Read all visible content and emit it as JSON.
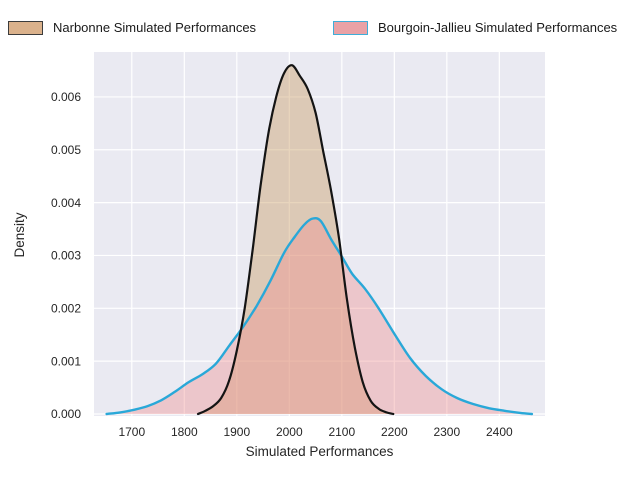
{
  "legend": {
    "items": [
      {
        "label": "Narbonne Simulated Performances",
        "swatch_fill": "#dbb28c",
        "swatch_border": "#3c3c3c"
      },
      {
        "label": "Bourgoin-Jallieu Simulated Performances",
        "swatch_fill": "#e9a2a6",
        "swatch_border": "#3fadd8"
      }
    ]
  },
  "chart_data": {
    "type": "area",
    "subtype": "kde-density",
    "title": "",
    "xlabel": "Simulated Performances",
    "ylabel": "Density",
    "xlim": [
      1628,
      2487
    ],
    "ylim": [
      0,
      0.00685
    ],
    "xticks": [
      "1700",
      "1800",
      "1900",
      "2000",
      "2100",
      "2200",
      "2300",
      "2400"
    ],
    "yticks": [
      "0.000",
      "0.001",
      "0.002",
      "0.003",
      "0.004",
      "0.005",
      "0.006"
    ],
    "grid": true,
    "legend_position": "top",
    "plot_background": "#eaeaf2",
    "grid_color": "#ffffff",
    "series": [
      {
        "name": "Narbonne Simulated Performances",
        "line_color": "#141414",
        "fill_color": "rgba(203,161,109,0.45)",
        "x": [
          1826,
          1840,
          1855,
          1870,
          1885,
          1900,
          1915,
          1930,
          1945,
          1960,
          1975,
          1990,
          2005,
          2020,
          2035,
          2050,
          2065,
          2080,
          2095,
          2110,
          2125,
          2140,
          2155,
          2170,
          2185,
          2198
        ],
        "y": [
          0,
          6e-05,
          0.00015,
          0.0003,
          0.00062,
          0.0012,
          0.002,
          0.0031,
          0.0043,
          0.0053,
          0.006,
          0.00645,
          0.0066,
          0.0064,
          0.00615,
          0.0057,
          0.00495,
          0.0042,
          0.0033,
          0.00215,
          0.00125,
          0.0006,
          0.00025,
          0.0001,
          3e-05,
          0
        ]
      },
      {
        "name": "Bourgoin-Jallieu Simulated Performances",
        "line_color": "#29a8d8",
        "fill_color": "rgba(239,144,145,0.40)",
        "x": [
          1652,
          1678,
          1704,
          1730,
          1756,
          1782,
          1808,
          1834,
          1860,
          1886,
          1912,
          1938,
          1964,
          1990,
          2010,
          2030,
          2045,
          2060,
          2080,
          2100,
          2120,
          2145,
          2170,
          2200,
          2230,
          2260,
          2290,
          2320,
          2350,
          2380,
          2410,
          2440,
          2462
        ],
        "y": [
          0,
          3e-05,
          8e-05,
          0.00015,
          0.00026,
          0.00042,
          0.0006,
          0.00075,
          0.00095,
          0.0013,
          0.00165,
          0.00205,
          0.00252,
          0.00305,
          0.00335,
          0.0036,
          0.0037,
          0.00365,
          0.0033,
          0.00298,
          0.00265,
          0.00236,
          0.002,
          0.00152,
          0.00106,
          0.00072,
          0.00047,
          0.0003,
          0.00019,
          0.00011,
          6e-05,
          2e-05,
          0
        ]
      }
    ]
  }
}
